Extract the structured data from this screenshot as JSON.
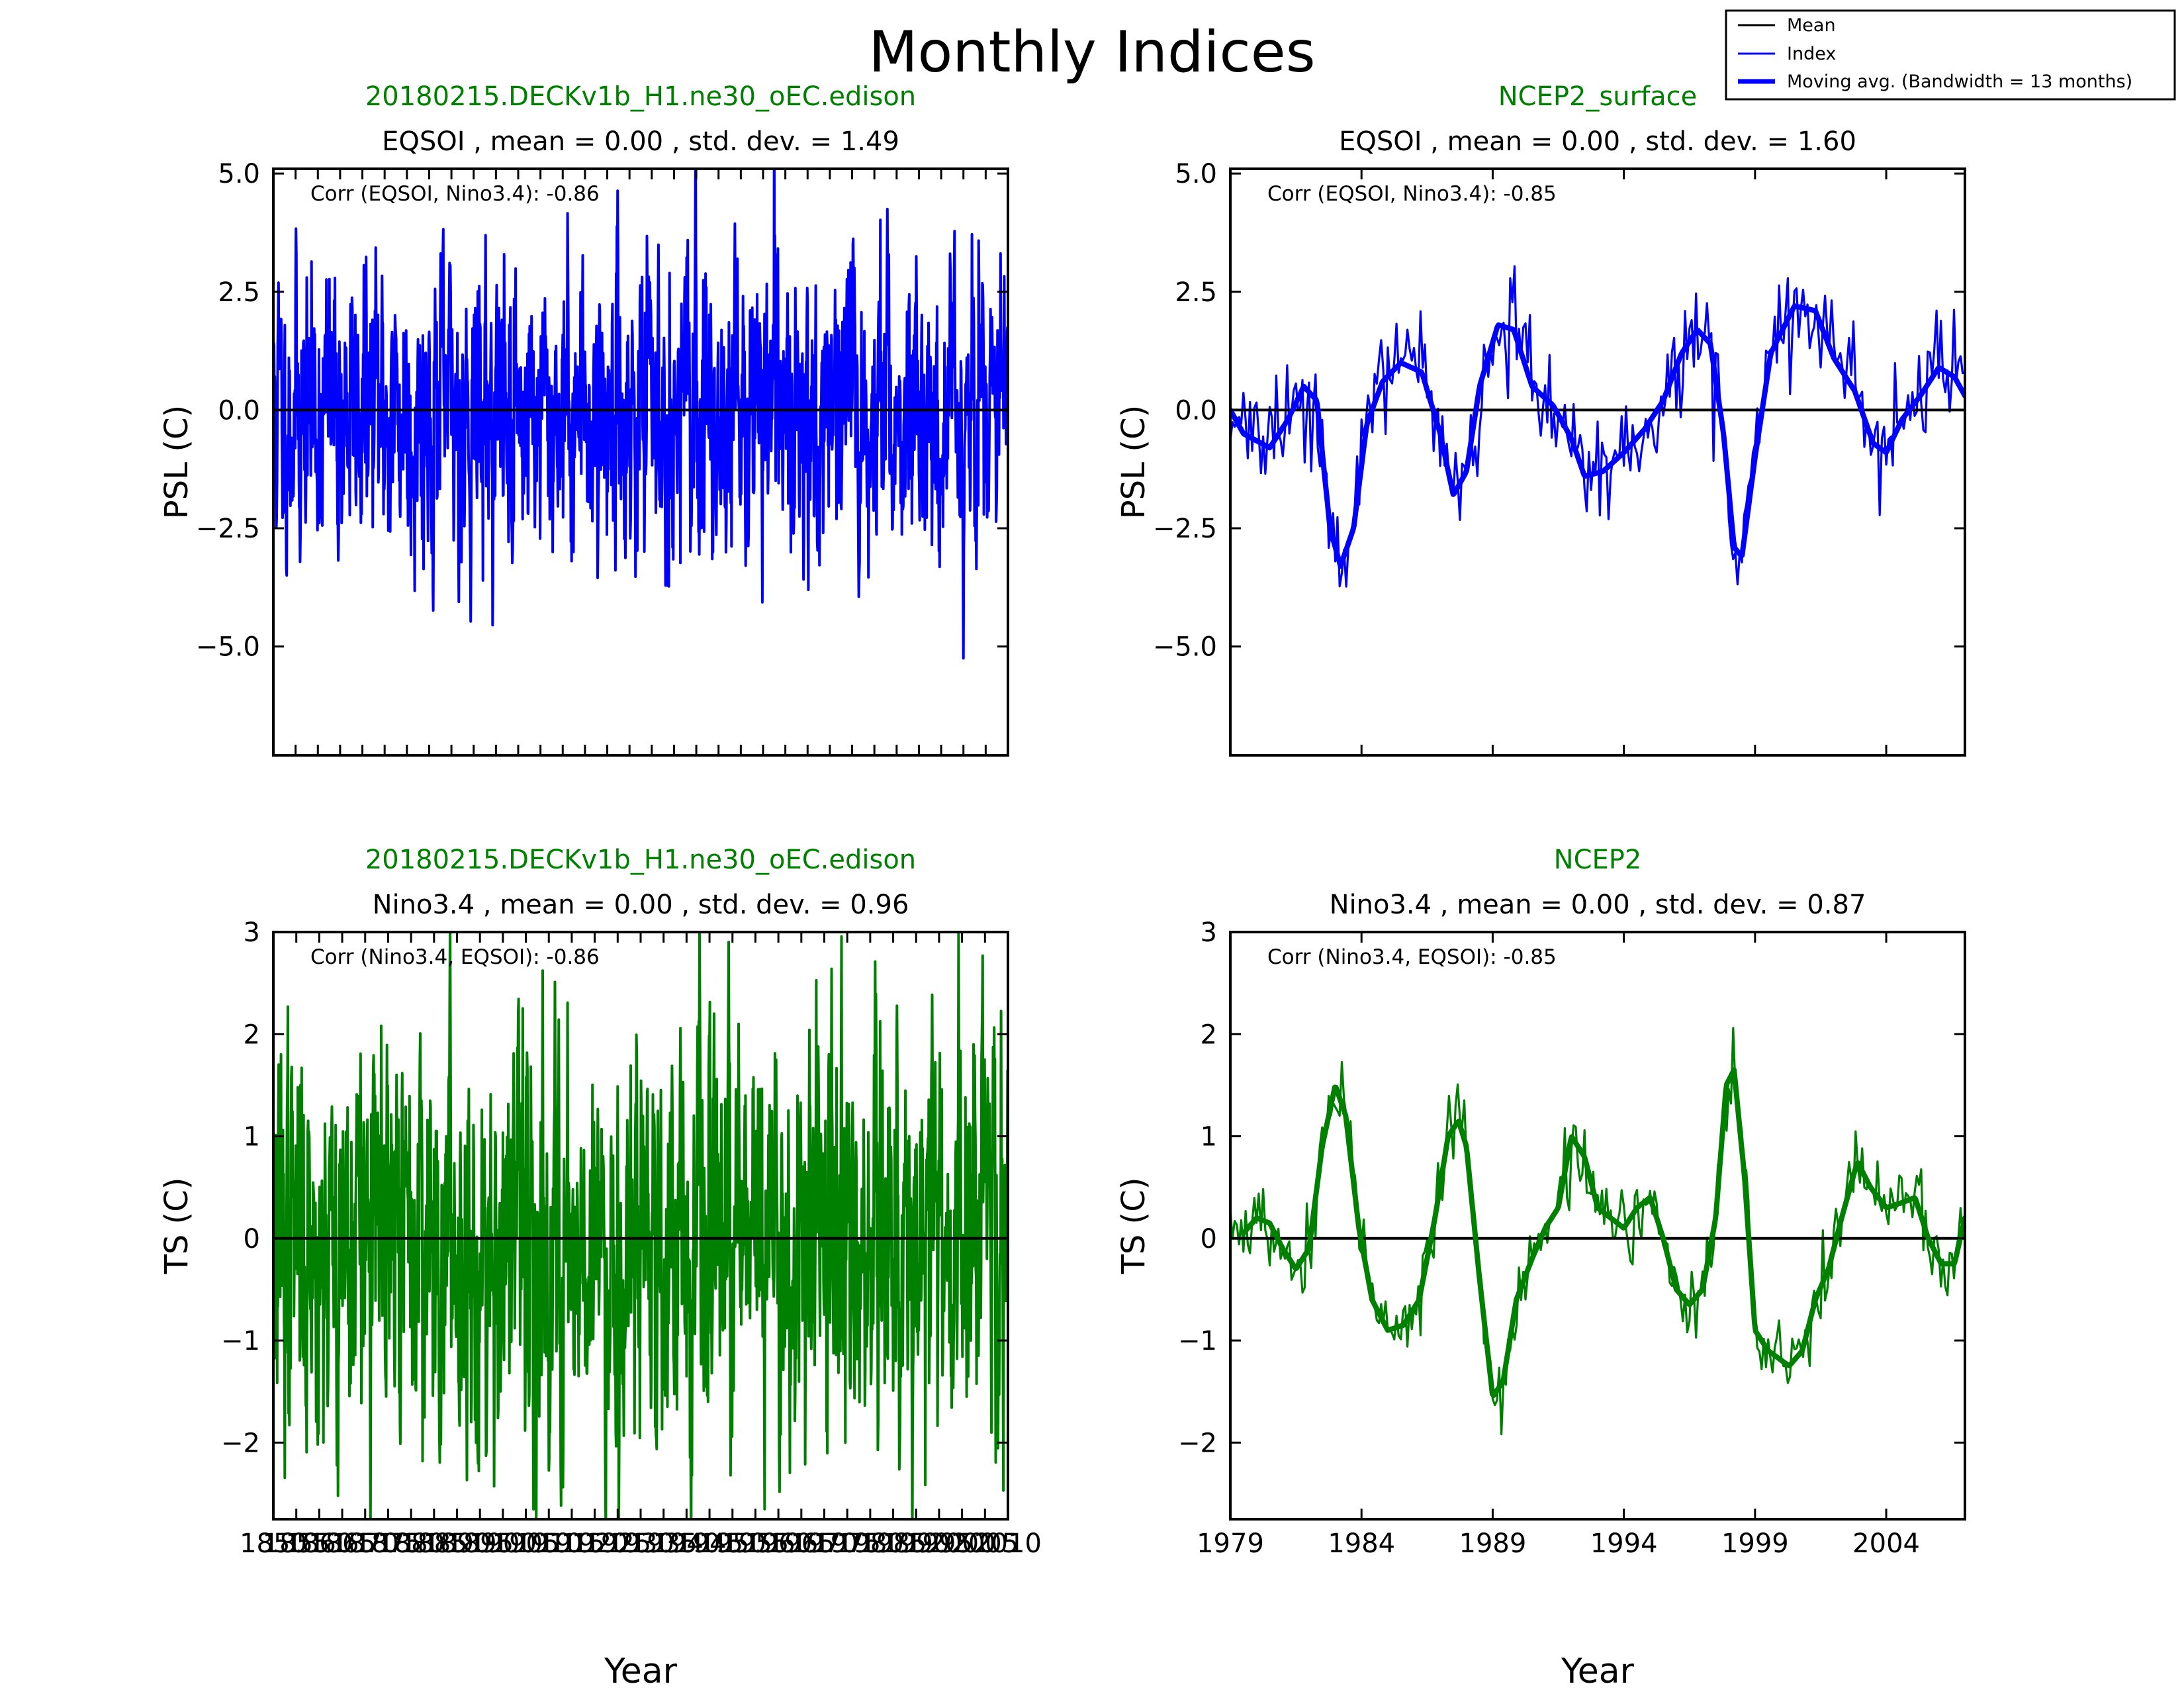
{
  "figure": {
    "title": "Monthly Indices",
    "legend": {
      "placement": "top-right",
      "entries": [
        {
          "label": "Mean",
          "color": "#000000",
          "style": "thin"
        },
        {
          "label": "Index",
          "color": "#0000ff",
          "style": "thin"
        },
        {
          "label": "Moving avg. (Bandwidth =  13 months)",
          "color": "#0000ff",
          "style": "thick"
        }
      ]
    }
  },
  "colors": {
    "psl": "#0000ff",
    "ts": "#008000",
    "mean": "#000000",
    "dataset_title": "#008000"
  },
  "chart_data": [
    {
      "type": "line",
      "dataset": "20180215.DECKv1b_H1.ne30_oEC.edison",
      "title": "EQSOI , mean = 0.00 , std. dev. = 1.49",
      "annotation": "Corr (EQSOI, Nino3.4): -0.86",
      "ylabel": "PSL (C)",
      "xlabel": "",
      "ylim": [
        -7.3,
        5.1
      ],
      "yticks": [
        5.0,
        2.5,
        0.0,
        -2.5,
        -5.0
      ],
      "ytick_labels": [
        "5.0",
        "2.5",
        "0.0",
        "−2.5",
        "−5.0"
      ],
      "xlim": [
        1850,
        2015
      ],
      "xticks": [],
      "xtick_labels": [],
      "mean": 0.0,
      "moving_average_shown": false,
      "series_approx": {
        "start": 1850,
        "months": 1980,
        "std": 1.49,
        "seed": 11
      }
    },
    {
      "type": "line",
      "dataset": "NCEP2_surface",
      "title": "EQSOI , mean = 0.00 , std. dev. = 1.60",
      "annotation": "Corr (EQSOI, Nino3.4): -0.85",
      "ylabel": "PSL (C)",
      "xlabel": "",
      "ylim": [
        -7.3,
        5.1
      ],
      "yticks": [
        5.0,
        2.5,
        0.0,
        -2.5,
        -5.0
      ],
      "ytick_labels": [
        "5.0",
        "2.5",
        "0.0",
        "−2.5",
        "−5.0"
      ],
      "xlim": [
        1979,
        2007
      ],
      "xticks": [
        1984,
        1989,
        1994,
        1999,
        2004
      ],
      "xtick_labels": [],
      "mean": 0.0,
      "moving_average_shown": true,
      "moving_average_keypoints": [
        [
          1979.0,
          0.0
        ],
        [
          1979.5,
          -0.5
        ],
        [
          1980.5,
          -0.8
        ],
        [
          1981.2,
          -0.2
        ],
        [
          1981.8,
          0.5
        ],
        [
          1982.3,
          0.2
        ],
        [
          1982.8,
          -2.5
        ],
        [
          1983.2,
          -3.3
        ],
        [
          1983.7,
          -2.5
        ],
        [
          1984.2,
          -0.3
        ],
        [
          1984.8,
          0.6
        ],
        [
          1985.5,
          1.0
        ],
        [
          1986.3,
          0.8
        ],
        [
          1987.0,
          -0.5
        ],
        [
          1987.5,
          -1.8
        ],
        [
          1988.0,
          -1.3
        ],
        [
          1988.5,
          0.5
        ],
        [
          1989.2,
          1.8
        ],
        [
          1989.8,
          1.7
        ],
        [
          1990.5,
          0.5
        ],
        [
          1991.3,
          0.1
        ],
        [
          1992.0,
          -0.6
        ],
        [
          1992.5,
          -1.4
        ],
        [
          1993.2,
          -1.3
        ],
        [
          1994.0,
          -0.9
        ],
        [
          1994.8,
          -0.4
        ],
        [
          1995.5,
          0.2
        ],
        [
          1996.2,
          1.2
        ],
        [
          1996.8,
          1.7
        ],
        [
          1997.3,
          1.4
        ],
        [
          1997.8,
          -0.5
        ],
        [
          1998.2,
          -2.9
        ],
        [
          1998.5,
          -3.1
        ],
        [
          1999.0,
          -1.0
        ],
        [
          1999.6,
          1.2
        ],
        [
          2000.5,
          2.2
        ],
        [
          2001.3,
          2.1
        ],
        [
          2002.0,
          1.1
        ],
        [
          2002.8,
          0.4
        ],
        [
          2003.5,
          -0.7
        ],
        [
          2004.0,
          -0.9
        ],
        [
          2004.6,
          -0.2
        ],
        [
          2005.3,
          0.3
        ],
        [
          2006.0,
          0.9
        ],
        [
          2006.6,
          0.7
        ],
        [
          2007.0,
          0.3
        ]
      ],
      "series_approx": {
        "start": 1979,
        "months": 336,
        "noise": 0.7,
        "seed": 23
      }
    },
    {
      "type": "line",
      "dataset": "20180215.DECKv1b_H1.ne30_oEC.edison",
      "title": "Nino3.4 , mean = 0.00 , std. dev. = 0.96",
      "annotation": "Corr (Nino3.4, EQSOI): -0.86",
      "ylabel": "TS (C)",
      "xlabel": "Year",
      "ylim": [
        -2.75,
        3.0
      ],
      "yticks": [
        3,
        2,
        1,
        0,
        -1,
        -2
      ],
      "ytick_labels": [
        "3",
        "2",
        "1",
        "0",
        "−1",
        "−2"
      ],
      "xlim": [
        1850,
        2010
      ],
      "xticks": [
        1850,
        1855,
        1860,
        1865,
        1870,
        1875,
        1880,
        1885,
        1890,
        1895,
        1900,
        1905,
        1910,
        1915,
        1920,
        1925,
        1930,
        1935,
        1940,
        1945,
        1950,
        1955,
        1960,
        1965,
        1970,
        1975,
        1980,
        1985,
        1990,
        1995,
        2000,
        2005,
        2010
      ],
      "xtick_labels": [
        "1850",
        "1855",
        "1860",
        "1865",
        "1870",
        "1875",
        "1880",
        "1885",
        "1890",
        "1895",
        "1900",
        "1905",
        "1910",
        "1915",
        "1920",
        "1925",
        "1930",
        "1935",
        "1940",
        "1945",
        "1950",
        "1955",
        "1960",
        "1965",
        "1970",
        "1975",
        "1980",
        "1985",
        "1990",
        "1995",
        "2000",
        "2005",
        "2010"
      ],
      "mean": 0.0,
      "moving_average_shown": false,
      "series_approx": {
        "start": 1850,
        "months": 1920,
        "std": 0.96,
        "seed": 37
      }
    },
    {
      "type": "line",
      "dataset": "NCEP2",
      "title": "Nino3.4 , mean = 0.00 , std. dev. = 0.87",
      "annotation": "Corr (Nino3.4, EQSOI): -0.85",
      "ylabel": "TS (C)",
      "xlabel": "Year",
      "ylim": [
        -2.75,
        3.0
      ],
      "yticks": [
        3,
        2,
        1,
        0,
        -1,
        -2
      ],
      "ytick_labels": [
        "3",
        "2",
        "1",
        "0",
        "−1",
        "−2"
      ],
      "xlim": [
        1979,
        2007
      ],
      "xticks": [
        1979,
        1984,
        1989,
        1994,
        1999,
        2004
      ],
      "xtick_labels": [
        "1979",
        "1984",
        "1989",
        "1994",
        "1999",
        "2004"
      ],
      "mean": 0.0,
      "moving_average_shown": true,
      "moving_average_keypoints": [
        [
          1979.5,
          0.05
        ],
        [
          1980.0,
          0.2
        ],
        [
          1980.5,
          0.15
        ],
        [
          1981.0,
          -0.1
        ],
        [
          1981.5,
          -0.3
        ],
        [
          1982.0,
          -0.1
        ],
        [
          1982.5,
          0.9
        ],
        [
          1983.0,
          1.5
        ],
        [
          1983.4,
          1.2
        ],
        [
          1983.9,
          0.1
        ],
        [
          1984.4,
          -0.6
        ],
        [
          1985.0,
          -0.9
        ],
        [
          1985.6,
          -0.85
        ],
        [
          1986.2,
          -0.6
        ],
        [
          1986.8,
          0.2
        ],
        [
          1987.3,
          1.0
        ],
        [
          1987.7,
          1.15
        ],
        [
          1988.0,
          0.9
        ],
        [
          1988.5,
          -0.4
        ],
        [
          1989.0,
          -1.55
        ],
        [
          1989.4,
          -1.4
        ],
        [
          1989.9,
          -0.6
        ],
        [
          1990.5,
          -0.2
        ],
        [
          1991.0,
          0.1
        ],
        [
          1991.5,
          0.3
        ],
        [
          1992.0,
          1.0
        ],
        [
          1992.5,
          0.8
        ],
        [
          1993.0,
          0.3
        ],
        [
          1993.5,
          0.2
        ],
        [
          1994.0,
          0.1
        ],
        [
          1994.5,
          0.3
        ],
        [
          1995.0,
          0.4
        ],
        [
          1995.5,
          0.0
        ],
        [
          1996.0,
          -0.5
        ],
        [
          1996.5,
          -0.65
        ],
        [
          1997.0,
          -0.5
        ],
        [
          1997.5,
          0.2
        ],
        [
          1997.9,
          1.5
        ],
        [
          1998.2,
          1.65
        ],
        [
          1998.6,
          0.6
        ],
        [
          1999.0,
          -0.9
        ],
        [
          1999.5,
          -1.1
        ],
        [
          2000.3,
          -1.25
        ],
        [
          2000.8,
          -1.1
        ],
        [
          2001.3,
          -0.6
        ],
        [
          2001.8,
          -0.3
        ],
        [
          2002.3,
          0.2
        ],
        [
          2002.9,
          0.75
        ],
        [
          2003.4,
          0.5
        ],
        [
          2004.0,
          0.3
        ],
        [
          2004.6,
          0.35
        ],
        [
          2005.1,
          0.4
        ],
        [
          2005.6,
          0.0
        ],
        [
          2006.1,
          -0.25
        ],
        [
          2006.6,
          -0.25
        ],
        [
          2007.0,
          0.2
        ]
      ],
      "series_approx": {
        "start": 1979,
        "months": 336,
        "noise": 0.25,
        "seed": 53
      }
    }
  ]
}
